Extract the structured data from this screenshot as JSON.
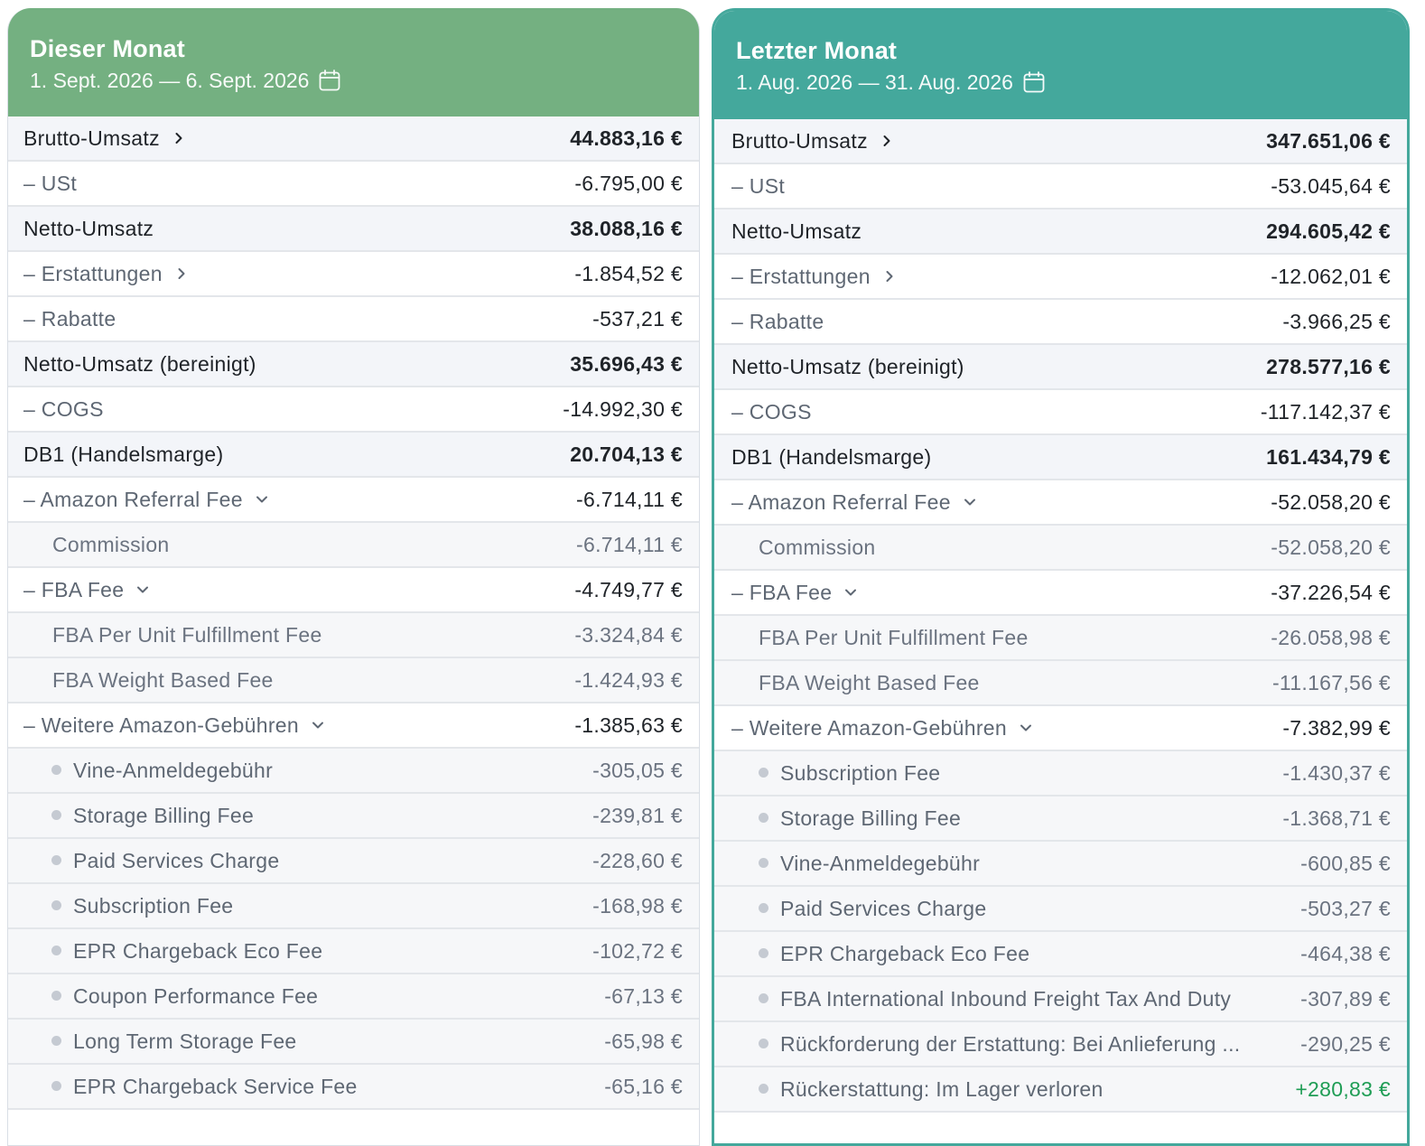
{
  "left": {
    "title": "Dieser Monat",
    "range": "1. Sept. 2026 — 6. Sept. 2026",
    "brutto": {
      "label": "Brutto-Umsatz",
      "value": "44.883,16 €"
    },
    "ust": {
      "label": "– USt",
      "value": "-6.795,00 €"
    },
    "netto": {
      "label": "Netto-Umsatz",
      "value": "38.088,16 €"
    },
    "erstattungen": {
      "label": "– Erstattungen",
      "value": "-1.854,52 €"
    },
    "rabatte": {
      "label": "– Rabatte",
      "value": "-537,21 €"
    },
    "netto_ber": {
      "label": "Netto-Umsatz (bereinigt)",
      "value": "35.696,43 €"
    },
    "cogs": {
      "label": "– COGS",
      "value": "-14.992,30 €"
    },
    "db1": {
      "label": "DB1 (Handelsmarge)",
      "value": "20.704,13 €"
    },
    "referral": {
      "label": "– Amazon Referral Fee",
      "value": "-6.714,11 €"
    },
    "commission": {
      "label": "Commission",
      "value": "-6.714,11 €"
    },
    "fba": {
      "label": "– FBA Fee",
      "value": "-4.749,77 €"
    },
    "fba_unit": {
      "label": "FBA Per Unit Fulfillment Fee",
      "value": "-3.324,84 €"
    },
    "fba_weight": {
      "label": "FBA Weight Based Fee",
      "value": "-1.424,93 €"
    },
    "weitere": {
      "label": "– Weitere Amazon-Gebühren",
      "value": "-1.385,63 €"
    },
    "items": [
      {
        "label": "Vine-Anmeldegebühr",
        "value": "-305,05 €"
      },
      {
        "label": "Storage Billing Fee",
        "value": "-239,81 €"
      },
      {
        "label": "Paid Services Charge",
        "value": "-228,60 €"
      },
      {
        "label": "Subscription Fee",
        "value": "-168,98 €"
      },
      {
        "label": "EPR Chargeback Eco Fee",
        "value": "-102,72 €"
      },
      {
        "label": "Coupon Performance Fee",
        "value": "-67,13 €"
      },
      {
        "label": "Long Term Storage Fee",
        "value": "-65,98 €"
      },
      {
        "label": "EPR Chargeback Service Fee",
        "value": "-65,16 €"
      }
    ]
  },
  "right": {
    "title": "Letzter Monat",
    "range": "1. Aug. 2026 — 31. Aug. 2026",
    "brutto": {
      "label": "Brutto-Umsatz",
      "value": "347.651,06 €"
    },
    "ust": {
      "label": "– USt",
      "value": "-53.045,64 €"
    },
    "netto": {
      "label": "Netto-Umsatz",
      "value": "294.605,42 €"
    },
    "erstattungen": {
      "label": "– Erstattungen",
      "value": "-12.062,01 €"
    },
    "rabatte": {
      "label": "– Rabatte",
      "value": "-3.966,25 €"
    },
    "netto_ber": {
      "label": "Netto-Umsatz (bereinigt)",
      "value": "278.577,16 €"
    },
    "cogs": {
      "label": "– COGS",
      "value": "-117.142,37 €"
    },
    "db1": {
      "label": "DB1 (Handelsmarge)",
      "value": "161.434,79 €"
    },
    "referral": {
      "label": "– Amazon Referral Fee",
      "value": "-52.058,20 €"
    },
    "commission": {
      "label": "Commission",
      "value": "-52.058,20 €"
    },
    "fba": {
      "label": "– FBA Fee",
      "value": "-37.226,54 €"
    },
    "fba_unit": {
      "label": "FBA Per Unit Fulfillment Fee",
      "value": "-26.058,98 €"
    },
    "fba_weight": {
      "label": "FBA Weight Based Fee",
      "value": "-11.167,56 €"
    },
    "weitere": {
      "label": "– Weitere Amazon-Gebühren",
      "value": "-7.382,99 €"
    },
    "items": [
      {
        "label": "Subscription Fee",
        "value": "-1.430,37 €"
      },
      {
        "label": "Storage Billing Fee",
        "value": "-1.368,71 €"
      },
      {
        "label": "Vine-Anmeldegebühr",
        "value": "-600,85 €"
      },
      {
        "label": "Paid Services Charge",
        "value": "-503,27 €"
      },
      {
        "label": "EPR Chargeback Eco Fee",
        "value": "-464,38 €"
      },
      {
        "label": "FBA International Inbound Freight Tax And Duty",
        "value": "-307,89 €"
      },
      {
        "label": "Rückforderung der Erstattung: Bei Anlieferung ...",
        "value": "-290,25 €"
      },
      {
        "label": "Rückerstattung: Im Lager verloren",
        "value": "+280,83 €",
        "positive": true
      }
    ]
  },
  "colors": {
    "left_header": "#74b081",
    "right_header": "#44a89c",
    "positive": "#1f9d55",
    "icons": [
      "calendar-icon",
      "chevron-right-icon",
      "chevron-down-icon",
      "bullet-dot"
    ]
  }
}
